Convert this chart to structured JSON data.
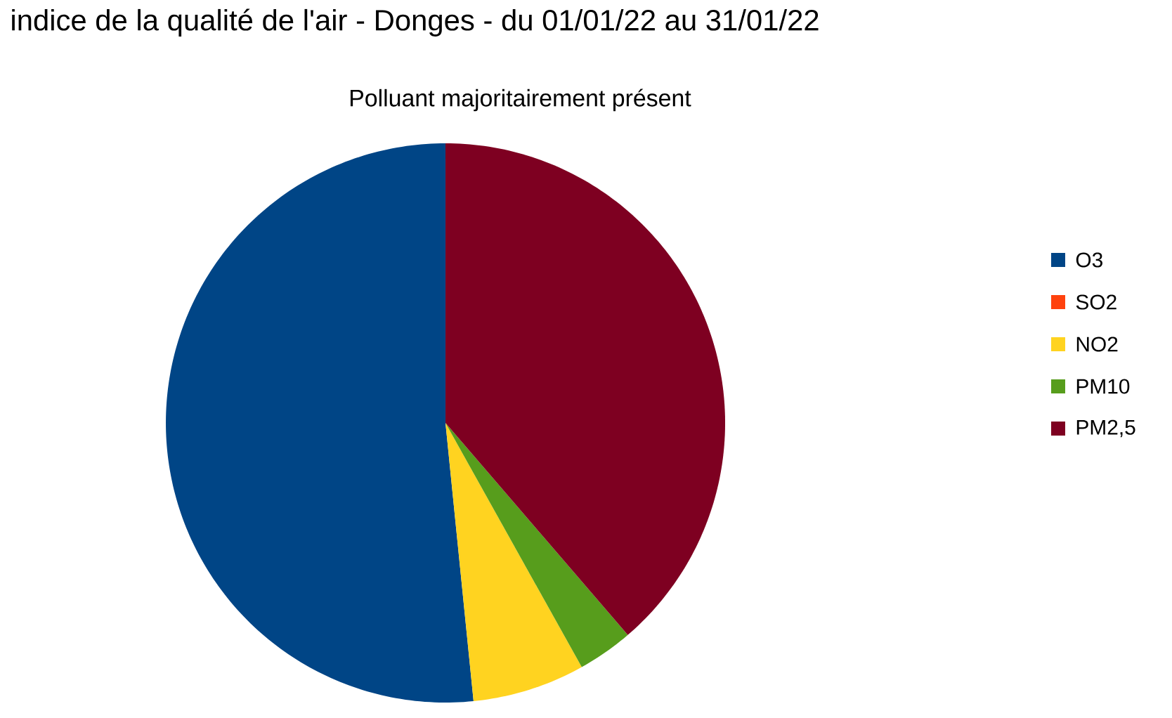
{
  "chart_data": {
    "type": "pie",
    "title": "indice de la qualité de l'air - Donges - du 01/01/22 au 31/01/22",
    "subtitle": "Polluant majoritairement présent",
    "categories": [
      "O3",
      "SO2",
      "NO2",
      "PM10",
      "PM2,5"
    ],
    "values": [
      51.6,
      0,
      6.5,
      3.2,
      38.7
    ],
    "colors": [
      "#004586",
      "#ff420e",
      "#ffd320",
      "#579d1c",
      "#7e0021"
    ],
    "legend": "right"
  }
}
